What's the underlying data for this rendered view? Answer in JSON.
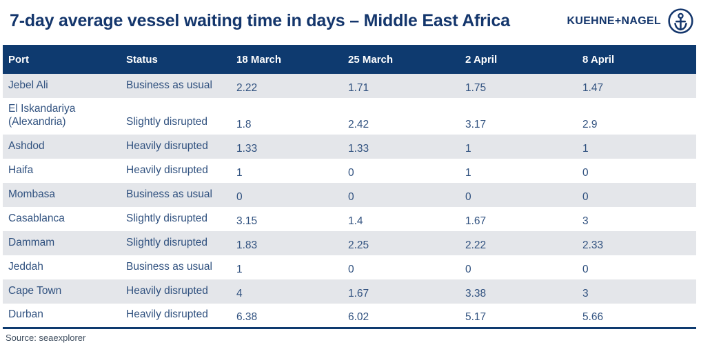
{
  "title": "7-day average vessel waiting time in days – Middle East Africa",
  "logo": {
    "text": "KUEHNE+NAGEL",
    "icon": "anchor-in-circle"
  },
  "source_note": "Source: seaexplorer",
  "colors": {
    "header_background": "#0e3a6f",
    "title_text": "#14366c",
    "body_text": "#30517f",
    "alt_row_background": "#e4e6ea",
    "header_text": "#ffffff"
  },
  "chart_data": {
    "type": "table",
    "title": "7-day average vessel waiting time in days – Middle East Africa",
    "columns": [
      "Port",
      "Status",
      "18 March",
      "25 March",
      "2 April",
      "8 April"
    ],
    "rows": [
      {
        "port": "Jebel Ali",
        "status": "Business as usual",
        "values": [
          2.22,
          1.71,
          1.75,
          1.47
        ]
      },
      {
        "port": "El Iskandariya (Alexandria)",
        "status": "Slightly disrupted",
        "values": [
          1.8,
          2.42,
          3.17,
          2.9
        ]
      },
      {
        "port": "Ashdod",
        "status": "Heavily disrupted",
        "values": [
          1.33,
          1.33,
          1,
          1
        ]
      },
      {
        "port": "Haifa",
        "status": "Heavily disrupted",
        "values": [
          1,
          0,
          1,
          0
        ]
      },
      {
        "port": "Mombasa",
        "status": "Business as usual",
        "values": [
          0,
          0,
          0,
          0
        ]
      },
      {
        "port": "Casablanca",
        "status": "Slightly disrupted",
        "values": [
          3.15,
          1.4,
          1.67,
          3
        ]
      },
      {
        "port": "Dammam",
        "status": "Slightly disrupted",
        "values": [
          1.83,
          2.25,
          2.22,
          2.33
        ]
      },
      {
        "port": "Jeddah",
        "status": "Business as usual",
        "values": [
          1,
          0,
          0,
          0
        ]
      },
      {
        "port": "Cape Town",
        "status": "Heavily disrupted",
        "values": [
          4,
          1.67,
          3.38,
          3
        ]
      },
      {
        "port": "Durban",
        "status": "Heavily disrupted",
        "values": [
          6.38,
          6.02,
          5.17,
          5.66
        ]
      }
    ],
    "source": "seaexplorer"
  }
}
